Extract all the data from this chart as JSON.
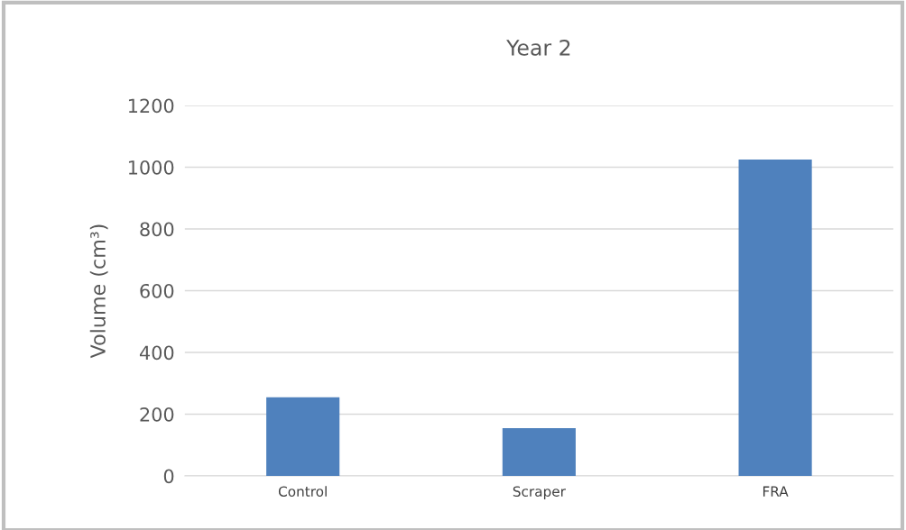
{
  "chart_data": {
    "type": "bar",
    "title": "Year 2",
    "ylabel": "Volume (cm³)",
    "categories": [
      "Control",
      "Scraper",
      "FRA"
    ],
    "values": [
      255,
      155,
      1025
    ],
    "color": "#4f81bd",
    "ylim": [
      0,
      1200
    ],
    "yticks": [
      0,
      200,
      400,
      600,
      800,
      1000,
      1200
    ],
    "grid": "y",
    "legend": false
  }
}
